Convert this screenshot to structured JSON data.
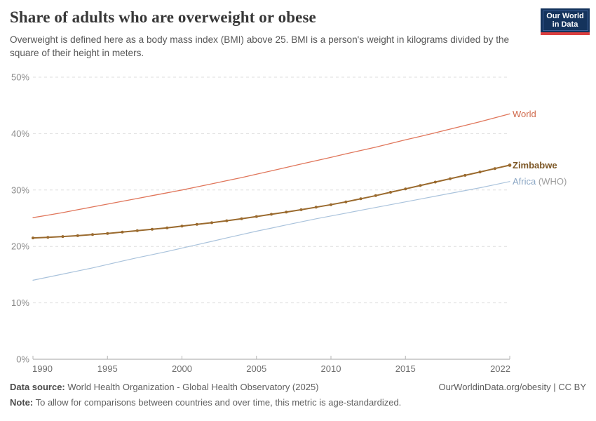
{
  "header": {
    "title": "Share of adults who are overweight or obese",
    "subtitle": "Overweight is defined here as a body mass index (BMI) above 25. BMI is a person's weight in kilograms divided by the square of their height in meters.",
    "logo": {
      "line1": "Our World",
      "line2": "in Data"
    }
  },
  "chart_data": {
    "type": "line",
    "title": "Share of adults who are overweight or obese",
    "xlabel": "",
    "ylabel": "",
    "xlim": [
      1990,
      2022
    ],
    "ylim": [
      0,
      50
    ],
    "grid": "horizontal-dashed",
    "legend_position": "right-of-line-ends",
    "y_ticks": [
      {
        "value": 0,
        "label": "0%"
      },
      {
        "value": 10,
        "label": "10%"
      },
      {
        "value": 20,
        "label": "20%"
      },
      {
        "value": 30,
        "label": "30%"
      },
      {
        "value": 40,
        "label": "40%"
      },
      {
        "value": 50,
        "label": "50%"
      }
    ],
    "x_ticks": [
      {
        "value": 1990,
        "label": "1990"
      },
      {
        "value": 1995,
        "label": "1995"
      },
      {
        "value": 2000,
        "label": "2000"
      },
      {
        "value": 2005,
        "label": "2005"
      },
      {
        "value": 2010,
        "label": "2010"
      },
      {
        "value": 2015,
        "label": "2015"
      },
      {
        "value": 2022,
        "label": "2022"
      }
    ],
    "years": [
      1990,
      1991,
      1992,
      1993,
      1994,
      1995,
      1996,
      1997,
      1998,
      1999,
      2000,
      2001,
      2002,
      2003,
      2004,
      2005,
      2006,
      2007,
      2008,
      2009,
      2010,
      2011,
      2012,
      2013,
      2014,
      2015,
      2016,
      2017,
      2018,
      2019,
      2020,
      2021,
      2022
    ],
    "series": [
      {
        "name": "World",
        "label": "World",
        "color": "#e0765b",
        "label_color": "#d06a4c",
        "label_bold": false,
        "line_width": 1.3,
        "markers": false,
        "values": [
          25.1,
          25.55,
          26,
          26.5,
          27,
          27.5,
          28,
          28.5,
          29,
          29.5,
          30,
          30.55,
          31.1,
          31.65,
          32.2,
          32.8,
          33.4,
          34,
          34.6,
          35.2,
          35.8,
          36.4,
          37,
          37.6,
          38.25,
          38.9,
          39.5,
          40.15,
          40.8,
          41.45,
          42.1,
          42.8,
          43.5
        ]
      },
      {
        "name": "Africa (WHO)",
        "label": "Africa",
        "label_suffix": " (WHO)",
        "color": "#aac3dc",
        "label_color": "#8aa6c4",
        "suffix_color": "#9e9e9e",
        "label_bold": false,
        "line_width": 1.2,
        "markers": false,
        "values": [
          14,
          14.55,
          15.1,
          15.65,
          16.2,
          16.8,
          17.4,
          18,
          18.55,
          19.1,
          19.7,
          20.3,
          20.9,
          21.5,
          22.1,
          22.7,
          23.25,
          23.8,
          24.35,
          24.9,
          25.4,
          25.9,
          26.4,
          26.9,
          27.4,
          27.9,
          28.4,
          28.9,
          29.4,
          29.9,
          30.4,
          30.95,
          31.5
        ]
      },
      {
        "name": "Zimbabwe",
        "label": "Zimbabwe",
        "color": "#9a6a2e",
        "label_color": "#7c5726",
        "label_bold": true,
        "line_width": 2,
        "markers": true,
        "values": [
          21.5,
          21.6,
          21.75,
          21.9,
          22.1,
          22.3,
          22.55,
          22.8,
          23.05,
          23.3,
          23.6,
          23.9,
          24.2,
          24.55,
          24.9,
          25.3,
          25.7,
          26.1,
          26.5,
          26.95,
          27.4,
          27.9,
          28.45,
          29,
          29.6,
          30.2,
          30.8,
          31.4,
          32,
          32.6,
          33.2,
          33.8,
          34.4
        ]
      }
    ]
  },
  "footer": {
    "datasource_label": "Data source:",
    "datasource_text": " World Health Organization - Global Health Observatory (2025)",
    "credit": "OurWorldinData.org/obesity | CC BY",
    "note_label": "Note:",
    "note_text": " To allow for comparisons between countries and over time, this metric is age-standardized."
  }
}
